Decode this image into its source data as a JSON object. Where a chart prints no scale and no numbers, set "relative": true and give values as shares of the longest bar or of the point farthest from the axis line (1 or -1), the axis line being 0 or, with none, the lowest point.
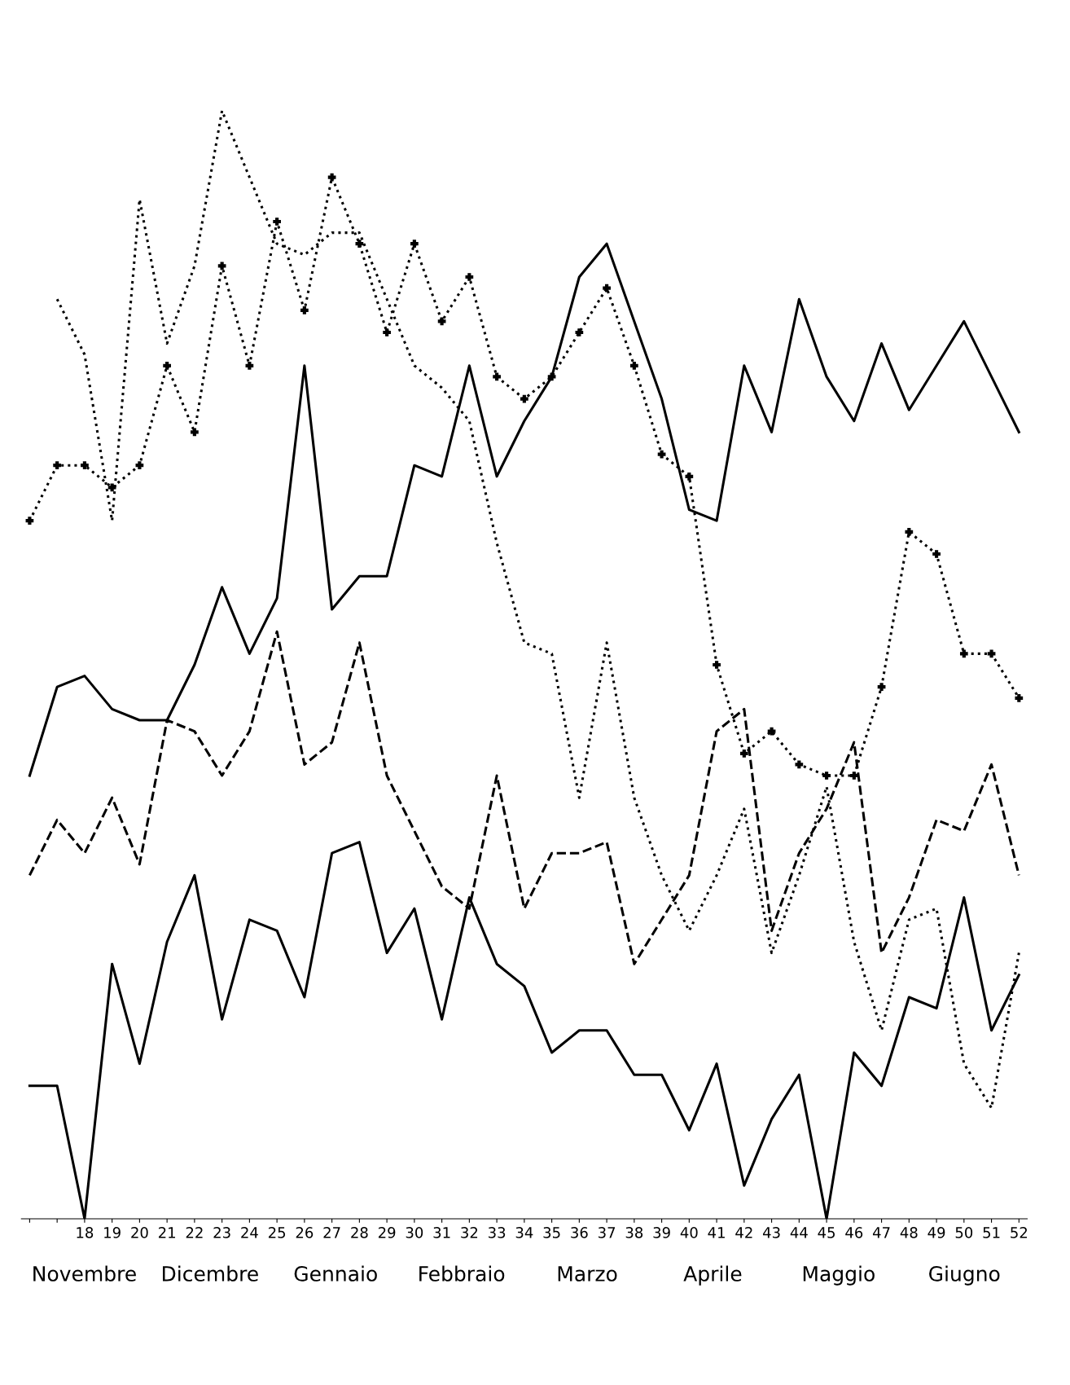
{
  "chart_data": {
    "type": "line",
    "relative": true,
    "legend": false,
    "categories": [
      null,
      null,
      "18",
      "19",
      "20",
      "21",
      "22",
      "23",
      "24",
      "25",
      "26",
      "27",
      "28",
      "29",
      "30",
      "31",
      "32",
      "33",
      "34",
      "35",
      "36",
      "37",
      "38",
      "39",
      "40",
      "41",
      "42",
      "43",
      "44",
      "45",
      "46",
      "47",
      "48",
      "49",
      "50",
      "51",
      "52"
    ],
    "series": [
      {
        "color": "#000000",
        "line_style": "solid",
        "marker": "none",
        "values": [
          0.12,
          0.12,
          0.0,
          0.23,
          0.14,
          0.25,
          0.31,
          0.18,
          0.27,
          0.26,
          0.2,
          0.33,
          0.34,
          0.24,
          0.28,
          0.18,
          0.29,
          0.23,
          0.21,
          0.15,
          0.17,
          0.17,
          0.13,
          0.13,
          0.08,
          0.14,
          0.03,
          0.09,
          0.13,
          0.0,
          0.15,
          0.12,
          0.2,
          0.19,
          0.29,
          0.17,
          0.22
        ]
      },
      {
        "color": "#000000",
        "line_style": "solid",
        "marker": "none",
        "values": [
          0.4,
          0.48,
          0.49,
          0.46,
          0.45,
          0.45,
          0.5,
          0.57,
          0.51,
          0.56,
          0.77,
          0.55,
          0.58,
          0.58,
          0.68,
          0.67,
          0.77,
          0.67,
          0.72,
          0.76,
          0.85,
          0.88,
          0.81,
          0.74,
          0.64,
          0.63,
          0.77,
          0.71,
          0.83,
          0.76,
          0.72,
          0.79,
          0.73,
          0.77,
          0.81,
          0.76,
          0.71
        ]
      },
      {
        "color": "#000000",
        "line_style": "dashed",
        "marker": "none",
        "values": [
          0.31,
          0.36,
          0.33,
          0.38,
          0.32,
          0.45,
          0.44,
          0.4,
          0.44,
          0.53,
          0.41,
          0.43,
          0.52,
          0.4,
          0.35,
          0.3,
          0.28,
          0.4,
          0.28,
          0.33,
          0.33,
          0.34,
          0.23,
          0.27,
          0.31,
          0.44,
          0.46,
          0.26,
          0.33,
          0.37,
          0.43,
          0.24,
          0.29,
          0.36,
          0.35,
          0.41,
          0.31
        ]
      },
      {
        "color": "#000000",
        "line_style": "dotted",
        "marker": "none",
        "values": [
          null,
          0.83,
          0.78,
          0.63,
          0.92,
          0.79,
          0.86,
          1.0,
          0.94,
          0.88,
          0.87,
          0.89,
          0.89,
          0.83,
          0.77,
          0.75,
          0.72,
          0.61,
          0.52,
          0.51,
          0.38,
          0.52,
          0.38,
          0.31,
          0.26,
          0.31,
          0.37,
          0.24,
          0.31,
          0.39,
          0.25,
          0.17,
          0.27,
          0.28,
          0.14,
          0.1,
          0.24
        ]
      },
      {
        "color": "#000000",
        "line_style": "dotted",
        "marker": "cross",
        "values": [
          0.63,
          0.68,
          0.68,
          0.66,
          0.68,
          0.77,
          0.71,
          0.86,
          0.77,
          0.9,
          0.82,
          0.94,
          0.88,
          0.8,
          0.88,
          0.81,
          0.85,
          0.76,
          0.74,
          0.76,
          0.8,
          0.84,
          0.77,
          0.69,
          0.67,
          0.5,
          0.42,
          0.44,
          0.41,
          0.4,
          0.4,
          0.48,
          0.62,
          0.6,
          0.51,
          0.51,
          0.47
        ]
      }
    ],
    "annotations": [
      "Novembre",
      "Dicembre",
      "Gennaio",
      "Febbraio",
      "Marzo",
      "Aprile",
      "Maggio",
      "Giugno"
    ]
  }
}
